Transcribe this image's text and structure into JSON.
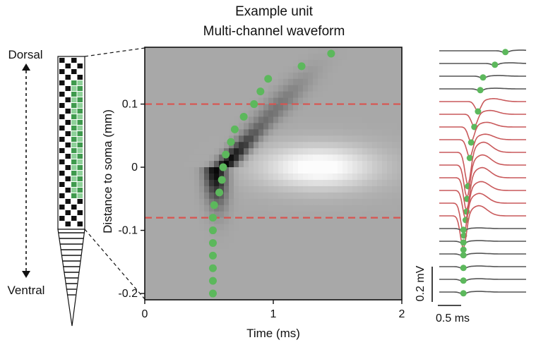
{
  "title": "Example unit",
  "subtitle": "Multi-channel waveform",
  "probe": {
    "top_label": "Dorsal",
    "bottom_label": "Ventral"
  },
  "chart_data": {
    "type": "heatmap",
    "xlabel": "Time (ms)",
    "ylabel": "Distance to soma (mm)",
    "xlim": [
      0,
      2
    ],
    "ylim": [
      -0.21,
      0.19
    ],
    "x_ticks": [
      0,
      1,
      2
    ],
    "x_tick_labels": [
      "0",
      "1",
      "2"
    ],
    "y_ticks": [
      0.1,
      0,
      -0.1,
      -0.2
    ],
    "y_tick_labels": [
      "0.1",
      "0",
      "-0.1",
      "-0.2"
    ],
    "threshold_lines_mm": [
      0.1,
      -0.08
    ],
    "threshold_color": "#d9534f",
    "peak_color": "#5cb85c",
    "peak_times": {
      "name": "",
      "points": [
        {
          "t": 1.45,
          "d": 0.18
        },
        {
          "t": 1.22,
          "d": 0.16
        },
        {
          "t": 0.96,
          "d": 0.14
        },
        {
          "t": 0.9,
          "d": 0.12
        },
        {
          "t": 0.85,
          "d": 0.1
        },
        {
          "t": 0.77,
          "d": 0.08
        },
        {
          "t": 0.7,
          "d": 0.06
        },
        {
          "t": 0.67,
          "d": 0.04
        },
        {
          "t": 0.63,
          "d": 0.02
        },
        {
          "t": 0.61,
          "d": 0.0
        },
        {
          "t": 0.6,
          "d": -0.02
        },
        {
          "t": 0.58,
          "d": -0.04
        },
        {
          "t": 0.54,
          "d": -0.06
        },
        {
          "t": 0.53,
          "d": -0.08
        },
        {
          "t": 0.53,
          "d": -0.1
        },
        {
          "t": 0.53,
          "d": -0.12
        },
        {
          "t": 0.53,
          "d": -0.14
        },
        {
          "t": 0.53,
          "d": -0.16
        },
        {
          "t": 0.53,
          "d": -0.18
        },
        {
          "t": 0.53,
          "d": -0.2
        }
      ]
    },
    "waveforms": {
      "channel_count": 20,
      "highlighted_channels": [
        4,
        5,
        6,
        7,
        8,
        9,
        10,
        11,
        12,
        13
      ],
      "trace_color": "#555555",
      "highlight_color": "#c9595b",
      "scale_bar": {
        "voltage_label": "0.2 mV",
        "time_label": "0.5 ms"
      }
    }
  }
}
